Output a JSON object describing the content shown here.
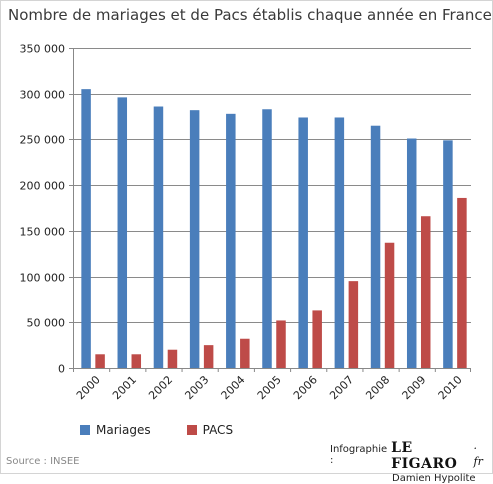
{
  "chart_data": {
    "type": "bar",
    "title": "Nombre de mariages et de Pacs établis chaque année en France",
    "categories": [
      "2000",
      "2001",
      "2002",
      "2003",
      "2004",
      "2005",
      "2006",
      "2007",
      "2008",
      "2009",
      "2010"
    ],
    "series": [
      {
        "name": "Mariages",
        "color": "#4a7ebb",
        "values": [
          305000,
          296000,
          286000,
          282000,
          278000,
          283000,
          274000,
          274000,
          265000,
          251000,
          249000
        ]
      },
      {
        "name": "PACS",
        "color": "#be4b48",
        "values": [
          15000,
          15000,
          20000,
          25000,
          32000,
          52000,
          63000,
          95000,
          137000,
          166000,
          186000
        ]
      }
    ],
    "ylim": [
      0,
      350000
    ],
    "yticks": [
      "0",
      "50 000",
      "100 000",
      "150 000",
      "200 000",
      "250 000",
      "300 000",
      "350 000"
    ],
    "ytick_values": [
      0,
      50000,
      100000,
      150000,
      200000,
      250000,
      300000,
      350000
    ],
    "grid": true,
    "legend": "bottom",
    "xlabel": "",
    "ylabel": ""
  },
  "footer": {
    "source": "Source : INSEE",
    "credit_prefix": "Infographie :",
    "logo_text": "LE FIGARO",
    "logo_suffix": "· fr",
    "author": "Damien Hypolite"
  }
}
